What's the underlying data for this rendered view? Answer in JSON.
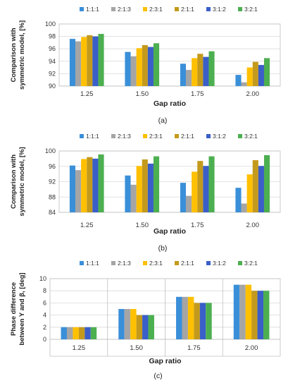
{
  "chart_data": [
    {
      "type": "bar",
      "caption": "(a)",
      "ylabel_lines": [
        "Comparison with",
        "symmetric model, [%]"
      ],
      "xlabel": "Gap ratio",
      "categories": [
        "1.25",
        "1.50",
        "1.75",
        "2.00"
      ],
      "ylim": [
        90,
        100
      ],
      "yticks": [
        "90",
        "92",
        "94",
        "96",
        "98",
        "100"
      ],
      "grid": true,
      "legend_position": "top",
      "series": [
        {
          "name": "1:1:1",
          "color": "#3a8fd9",
          "values": [
            97.6,
            95.5,
            93.6,
            91.8
          ]
        },
        {
          "name": "2:1:3",
          "color": "#a5a5a5",
          "values": [
            97.2,
            94.8,
            92.6,
            90.6
          ]
        },
        {
          "name": "2:3:1",
          "color": "#ffc000",
          "values": [
            97.9,
            96.1,
            94.5,
            93.0
          ]
        },
        {
          "name": "2:1:1",
          "color": "#c49a1c",
          "values": [
            98.2,
            96.6,
            95.2,
            93.9
          ]
        },
        {
          "name": "3:1:2",
          "color": "#3a5fc8",
          "values": [
            98.0,
            96.3,
            94.7,
            93.4
          ]
        },
        {
          "name": "3:2:1",
          "color": "#4caf50",
          "values": [
            98.4,
            96.9,
            95.6,
            94.5
          ]
        }
      ]
    },
    {
      "type": "bar",
      "caption": "(b)",
      "ylabel_lines": [
        "Comparison with",
        "symmetric model, [%]"
      ],
      "xlabel": "Gap ratio",
      "categories": [
        "1.25",
        "1.50",
        "1.75",
        "2.00"
      ],
      "ylim": [
        84,
        100
      ],
      "yticks": [
        "84",
        "88",
        "92",
        "96",
        "100"
      ],
      "grid": true,
      "legend_position": "top",
      "series": [
        {
          "name": "1:1:1",
          "color": "#3a8fd9",
          "values": [
            96.2,
            93.6,
            91.7,
            90.4
          ]
        },
        {
          "name": "2:1:3",
          "color": "#a5a5a5",
          "values": [
            95.0,
            91.2,
            88.3,
            86.3
          ]
        },
        {
          "name": "2:3:1",
          "color": "#ffc000",
          "values": [
            97.9,
            96.1,
            94.6,
            93.9
          ]
        },
        {
          "name": "2:1:1",
          "color": "#c49a1c",
          "values": [
            98.4,
            97.8,
            97.4,
            97.6
          ]
        },
        {
          "name": "3:1:2",
          "color": "#3a5fc8",
          "values": [
            98.0,
            96.7,
            96.1,
            96.1
          ]
        },
        {
          "name": "3:2:1",
          "color": "#4caf50",
          "values": [
            99.1,
            98.6,
            98.6,
            98.9
          ]
        }
      ]
    },
    {
      "type": "bar",
      "caption": "(c)",
      "ylabel_lines": [
        "Phase difference",
        "between Y and β, [deg]"
      ],
      "xlabel": "Gap ratio",
      "categories": [
        "1.25",
        "1.50",
        "1.75",
        "2.00"
      ],
      "ylim": [
        0,
        10
      ],
      "yticks": [
        "0",
        "2",
        "4",
        "6",
        "8",
        "10"
      ],
      "grid": true,
      "legend_position": "top",
      "series": [
        {
          "name": "1:1:1",
          "color": "#3a8fd9",
          "values": [
            2,
            5,
            7,
            9
          ]
        },
        {
          "name": "2:1:3",
          "color": "#a5a5a5",
          "values": [
            2,
            5,
            7,
            9
          ]
        },
        {
          "name": "2:3:1",
          "color": "#ffc000",
          "values": [
            2,
            5,
            7,
            9
          ]
        },
        {
          "name": "2:1:1",
          "color": "#c49a1c",
          "values": [
            2,
            4,
            6,
            8
          ]
        },
        {
          "name": "3:1:2",
          "color": "#3a5fc8",
          "values": [
            2,
            4,
            6,
            8
          ]
        },
        {
          "name": "3:2:1",
          "color": "#4caf50",
          "values": [
            2,
            4,
            6,
            8
          ]
        }
      ]
    }
  ]
}
